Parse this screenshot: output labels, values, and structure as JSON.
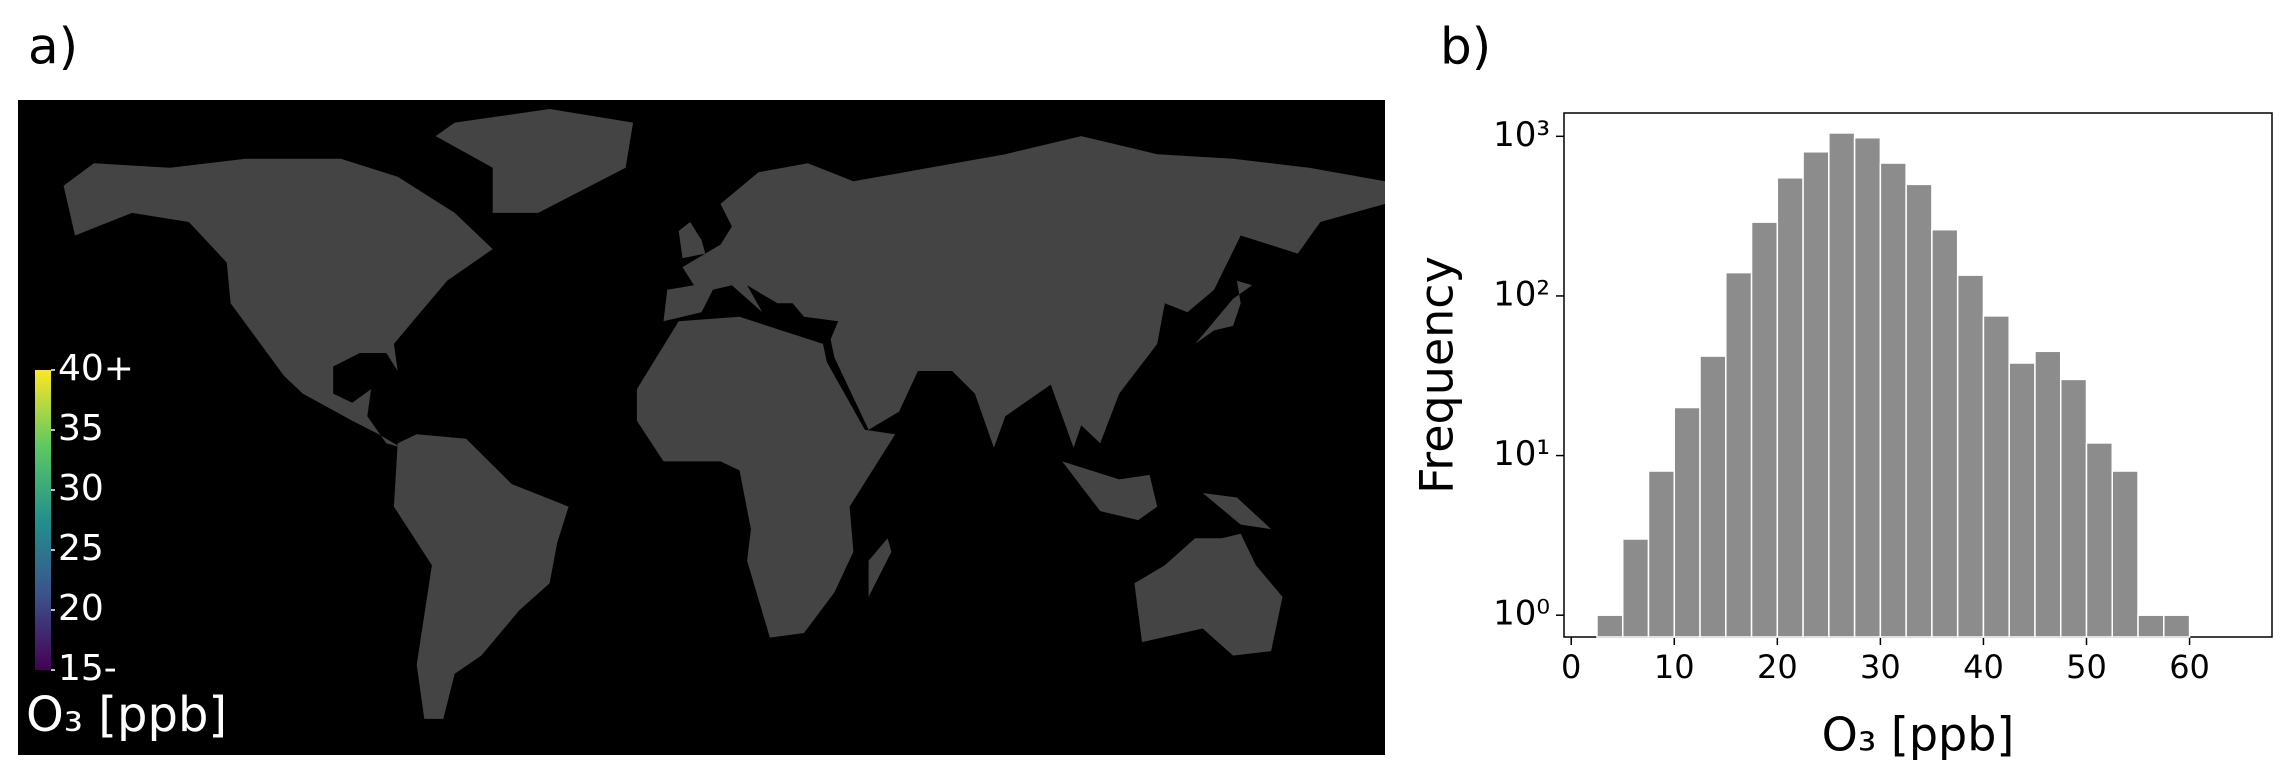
{
  "chart_data": [
    {
      "type": "map",
      "panel": "a)",
      "colorbar": {
        "lim": [
          15,
          40
        ],
        "label": "O₃ [ppb]",
        "colors": [
          "#440154",
          "#3b528b",
          "#21918c",
          "#5ec962",
          "#fde725"
        ],
        "ticks": [
          {
            "value": 15,
            "label": "15-"
          },
          20,
          25,
          30,
          35,
          {
            "value": 40,
            "label": "40+"
          }
        ]
      }
    },
    {
      "type": "histogram",
      "panel": "b)",
      "xlabel": "O₃ [ppb]",
      "ylabel": "Frequency",
      "color": "#8c8c8c",
      "bins": [
        2.5,
        5,
        7.5,
        10,
        12.5,
        15,
        17.5,
        20,
        22.5,
        25,
        27.5,
        30,
        32.5,
        35,
        37.5,
        40,
        42.5,
        45,
        47.5,
        50,
        52.5,
        55,
        57.5,
        60
      ],
      "values": [
        1,
        3,
        8,
        20,
        42,
        140,
        290,
        550,
        800,
        1050,
        980,
        680,
        500,
        260,
        135,
        75,
        38,
        45,
        30,
        12,
        8,
        1,
        1
      ],
      "xlim": [
        -0.7,
        68
      ],
      "xticks": [
        0,
        10,
        20,
        30,
        40,
        50,
        60
      ],
      "ylim": [
        0.73,
        1400
      ],
      "log_y": true,
      "yticks": [
        {
          "value": 1,
          "label": "10⁰"
        },
        {
          "value": 10,
          "label": "10¹"
        },
        {
          "value": 100,
          "label": "10²"
        },
        {
          "value": 1000,
          "label": "10³"
        }
      ]
    }
  ]
}
